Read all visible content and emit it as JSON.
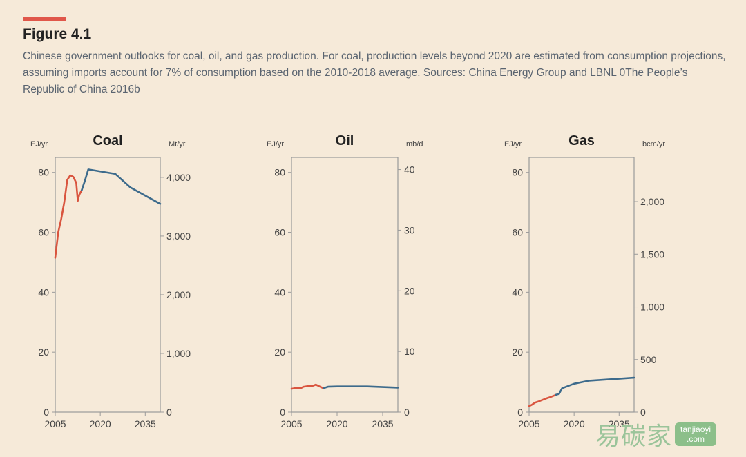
{
  "figure": {
    "label": "Figure 4.1",
    "caption": "Chinese government outlooks for coal, oil, and gas production. For coal, production levels beyond 2020 are estimated from consumption projections, assuming imports account for 7% of consumption based on the 2010-2018 average. Sources: China Energy Group and LBNL 0The People’s Republic of China 2016b"
  },
  "colors": {
    "historical": "#d9553f",
    "projection": "#3d6b8c",
    "frame": "#9a9a9a"
  },
  "chart_data": [
    {
      "type": "line",
      "title": "Coal",
      "left_unit": "EJ/yr",
      "right_unit": "Mt/yr",
      "xlim": [
        2005,
        2040
      ],
      "ylim": [
        0,
        85
      ],
      "x_ticks": [
        2005,
        2020,
        2035
      ],
      "x_tick_labels": [
        "2005",
        "2020",
        "2035"
      ],
      "y_ticks": [
        0,
        20,
        40,
        60,
        80
      ],
      "y_tick_labels": [
        "0",
        "20",
        "40",
        "60",
        "80"
      ],
      "right_ticks": [
        0,
        1000,
        2000,
        3000,
        4000
      ],
      "right_tick_labels": [
        "0",
        "1,000",
        "2,000",
        "3,000",
        "4,000"
      ],
      "right_ylim": [
        0,
        4340
      ],
      "series": [
        {
          "role": "historical",
          "points": [
            [
              2005,
              51.5
            ],
            [
              2006,
              60
            ],
            [
              2007,
              64.5
            ],
            [
              2008,
              70
            ],
            [
              2009,
              77.5
            ],
            [
              2010,
              79
            ],
            [
              2011,
              78.5
            ],
            [
              2012,
              76.5
            ],
            [
              2012.5,
              70.5
            ],
            [
              2013,
              72.5
            ],
            [
              2013.8,
              74
            ]
          ]
        },
        {
          "role": "projection",
          "points": [
            [
              2013.8,
              74
            ],
            [
              2014.8,
              77
            ],
            [
              2016,
              81
            ],
            [
              2025,
              79.5
            ],
            [
              2030,
              75
            ],
            [
              2040,
              69.5
            ]
          ]
        }
      ]
    },
    {
      "type": "line",
      "title": "Oil",
      "left_unit": "EJ/yr",
      "right_unit": "mb/d",
      "xlim": [
        2005,
        2040
      ],
      "ylim": [
        0,
        85
      ],
      "x_ticks": [
        2005,
        2020,
        2035
      ],
      "x_tick_labels": [
        "2005",
        "2020",
        "2035"
      ],
      "y_ticks": [
        0,
        20,
        40,
        60,
        80
      ],
      "y_tick_labels": [
        "0",
        "20",
        "40",
        "60",
        "80"
      ],
      "right_ticks": [
        0,
        10,
        20,
        30,
        40
      ],
      "right_tick_labels": [
        "0",
        "10",
        "20",
        "30",
        "40"
      ],
      "right_ylim": [
        0,
        42
      ],
      "series": [
        {
          "role": "historical",
          "points": [
            [
              2005,
              7.8
            ],
            [
              2006,
              8
            ],
            [
              2008,
              8
            ],
            [
              2009,
              8.5
            ],
            [
              2011,
              8.8
            ],
            [
              2012,
              8.8
            ],
            [
              2013,
              9.2
            ],
            [
              2014,
              8.7
            ],
            [
              2015.5,
              8
            ]
          ]
        },
        {
          "role": "projection",
          "points": [
            [
              2015.5,
              8
            ],
            [
              2017,
              8.5
            ],
            [
              2020,
              8.6
            ],
            [
              2030,
              8.6
            ],
            [
              2040,
              8.2
            ]
          ]
        }
      ]
    },
    {
      "type": "line",
      "title": "Gas",
      "left_unit": "EJ/yr",
      "right_unit": "bcm/yr",
      "xlim": [
        2005,
        2040
      ],
      "ylim": [
        0,
        85
      ],
      "x_ticks": [
        2005,
        2020,
        2035
      ],
      "x_tick_labels": [
        "2005",
        "2020",
        "2035"
      ],
      "y_ticks": [
        0,
        20,
        40,
        60,
        80
      ],
      "y_tick_labels": [
        "0",
        "20",
        "40",
        "60",
        "80"
      ],
      "right_ticks": [
        0,
        500,
        1000,
        1500,
        2000
      ],
      "right_tick_labels": [
        "0",
        "500",
        "1,000",
        "1,500",
        "2,000"
      ],
      "right_ylim": [
        0,
        2420
      ],
      "series": [
        {
          "role": "historical",
          "points": [
            [
              2005,
              2
            ],
            [
              2006,
              2.5
            ],
            [
              2007,
              3.2
            ],
            [
              2008,
              3.5
            ],
            [
              2010,
              4.3
            ],
            [
              2011,
              4.7
            ],
            [
              2012,
              5
            ],
            [
              2013,
              5.4
            ],
            [
              2014,
              5.8
            ]
          ]
        },
        {
          "role": "projection",
          "points": [
            [
              2014,
              5.8
            ],
            [
              2015,
              6.1
            ],
            [
              2016,
              8
            ],
            [
              2020,
              9.5
            ],
            [
              2025,
              10.5
            ],
            [
              2040,
              11.5
            ]
          ]
        }
      ]
    }
  ],
  "watermark": {
    "brand_cn": "易碳家",
    "brand_line1": "tanjiaoyi",
    "brand_line2": ".com"
  }
}
